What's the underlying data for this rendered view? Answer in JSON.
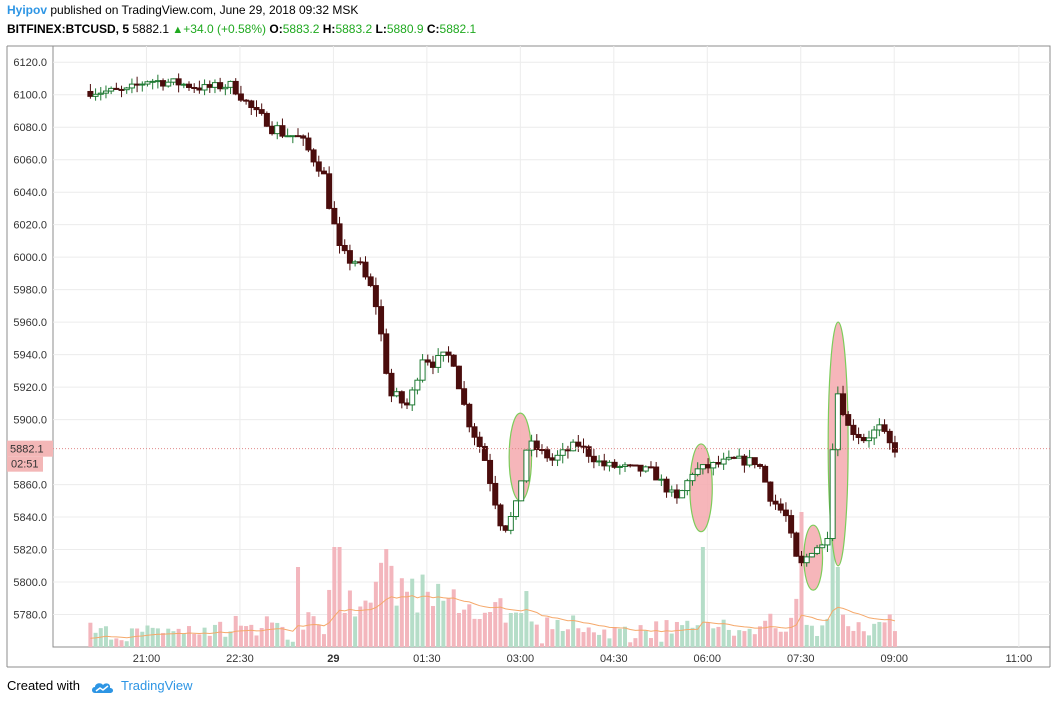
{
  "header": {
    "author": "Hyipov",
    "published_text": "published on TradingView.com, June 29, 2018 09:32 MSK",
    "symbol": "BITFINEX:BTCUSD, 5",
    "last": "5882.1",
    "change": "+34.0 (+0.58%)",
    "open_label": "O:",
    "open": "5883.2",
    "high_label": "H:",
    "high": "5883.2",
    "low_label": "L:",
    "low": "5880.9",
    "close_label": "C:",
    "close": "5882.1"
  },
  "footer": {
    "created_with": "Created with",
    "brand": "TradingView"
  },
  "colors": {
    "up": "#1f7a33",
    "down": "#4b0d0d",
    "vol_up": "#b5ddc8",
    "vol_down": "#f3b6bd",
    "ma": "#f5a86a",
    "ellipse_fill": "#f4a9ae",
    "ellipse_stroke": "#7ccc5a",
    "axis_text": "#333333",
    "price_badge": "#f3b7b7"
  },
  "chart_data": {
    "type": "candlestick",
    "timeframe": "5",
    "ylim": [
      5760,
      6130
    ],
    "yticks": [
      6120,
      6100,
      6080,
      6060,
      6040,
      6020,
      6000,
      5980,
      5960,
      5940,
      5920,
      5900,
      5860,
      5840,
      5820,
      5800,
      5780
    ],
    "xticks": [
      "21:00",
      "22:30",
      "29",
      "01:30",
      "03:00",
      "04:30",
      "06:00",
      "07:30",
      "09:00",
      "11:00"
    ],
    "current_price": "5882.1",
    "countdown": "02:51",
    "path": [
      {
        "t": 20.1,
        "p": 6102
      },
      {
        "t": 20.75,
        "p": 6102
      },
      {
        "t": 21.1,
        "p": 6109
      },
      {
        "t": 21.6,
        "p": 6107
      },
      {
        "t": 22.0,
        "p": 6104
      },
      {
        "t": 22.45,
        "p": 6106
      },
      {
        "t": 22.8,
        "p": 6090
      },
      {
        "t": 23.2,
        "p": 6078
      },
      {
        "t": 23.5,
        "p": 6074
      },
      {
        "t": 23.9,
        "p": 6055
      },
      {
        "t": 24.2,
        "p": 6000
      },
      {
        "t": 24.45,
        "p": 5998
      },
      {
        "t": 24.75,
        "p": 5975
      },
      {
        "t": 25.0,
        "p": 5915
      },
      {
        "t": 25.3,
        "p": 5908
      },
      {
        "t": 25.5,
        "p": 5940
      },
      {
        "t": 25.75,
        "p": 5935
      },
      {
        "t": 26.0,
        "p": 5940
      },
      {
        "t": 26.2,
        "p": 5905
      },
      {
        "t": 26.5,
        "p": 5878
      },
      {
        "t": 26.8,
        "p": 5833
      },
      {
        "t": 27.0,
        "p": 5842
      },
      {
        "t": 27.2,
        "p": 5886
      },
      {
        "t": 27.6,
        "p": 5875
      },
      {
        "t": 28.0,
        "p": 5885
      },
      {
        "t": 28.4,
        "p": 5872
      },
      {
        "t": 28.8,
        "p": 5870
      },
      {
        "t": 29.2,
        "p": 5868
      },
      {
        "t": 29.6,
        "p": 5850
      },
      {
        "t": 29.85,
        "p": 5868
      },
      {
        "t": 30.2,
        "p": 5872
      },
      {
        "t": 30.5,
        "p": 5875
      },
      {
        "t": 30.9,
        "p": 5874
      },
      {
        "t": 31.1,
        "p": 5852
      },
      {
        "t": 31.35,
        "p": 5840
      },
      {
        "t": 31.55,
        "p": 5808
      },
      {
        "t": 31.8,
        "p": 5822
      },
      {
        "t": 32.0,
        "p": 5822
      },
      {
        "t": 32.15,
        "p": 5920
      },
      {
        "t": 32.35,
        "p": 5895
      },
      {
        "t": 32.6,
        "p": 5888
      },
      {
        "t": 32.85,
        "p": 5895
      },
      {
        "t": 33.05,
        "p": 5882
      }
    ],
    "highlight_ellipses": [
      {
        "t": 27.0,
        "p": 5877,
        "rt": 0.18,
        "rp": 27
      },
      {
        "t": 29.9,
        "p": 5858,
        "rt": 0.18,
        "rp": 27
      },
      {
        "t": 31.7,
        "p": 5815,
        "rt": 0.15,
        "rp": 20
      },
      {
        "t": 32.1,
        "p": 5885,
        "rt": 0.16,
        "rp": 75
      }
    ]
  }
}
